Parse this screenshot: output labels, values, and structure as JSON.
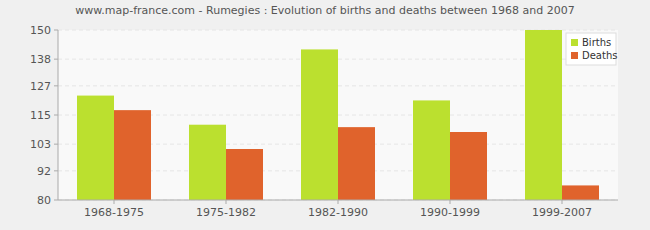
{
  "chart_data": {
    "type": "bar",
    "title": "www.map-france.com - Rumegies : Evolution of births and deaths between 1968 and 2007",
    "categories": [
      "1968-1975",
      "1975-1982",
      "1982-1990",
      "1990-1999",
      "1999-2007"
    ],
    "series": [
      {
        "name": "Births",
        "color": "#bbe02f",
        "values": [
          123,
          111,
          142,
          121,
          150
        ]
      },
      {
        "name": "Deaths",
        "color": "#e0632c",
        "values": [
          117,
          101,
          110,
          108,
          86
        ]
      }
    ],
    "ylim": [
      80,
      150
    ],
    "yticks": [
      80,
      92,
      103,
      115,
      127,
      138,
      150
    ],
    "grid": true,
    "legend": "upper right"
  }
}
